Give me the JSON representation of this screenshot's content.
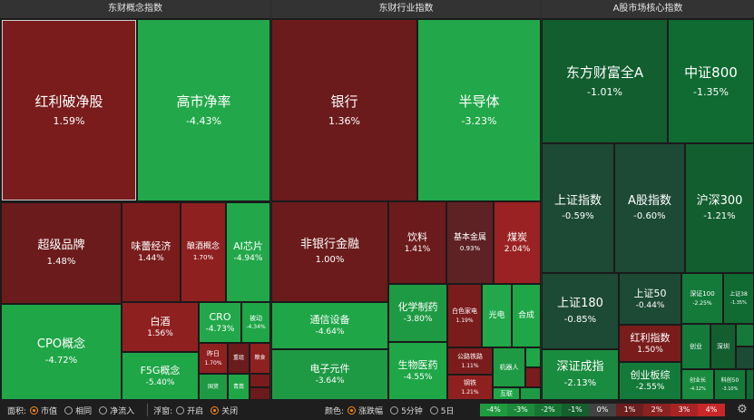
{
  "panels": {
    "concept": "东财概念指数",
    "industry": "东财行业指数",
    "market": "A股市场核心指数"
  },
  "concept": {
    "hongli": {
      "name": "红利破净股",
      "pct": "1.59%"
    },
    "gaoshi": {
      "name": "高市净率",
      "pct": "-4.43%"
    },
    "chaoji": {
      "name": "超级品牌",
      "pct": "1.48%"
    },
    "weilei": {
      "name": "味蕾经济",
      "pct": "1.44%"
    },
    "niangjiu": {
      "name": "酿酒概念",
      "pct": "1.70%"
    },
    "aichip": {
      "name": "AI芯片",
      "pct": "-4.94%"
    },
    "cpo": {
      "name": "CPO概念",
      "pct": "-4.72%"
    },
    "baijiu": {
      "name": "白酒",
      "pct": "1.56%"
    },
    "cro": {
      "name": "CRO",
      "pct": "-4.73%"
    },
    "beidong": {
      "name": "被动",
      "pct": "-4.34%"
    },
    "f5g": {
      "name": "F5G概念",
      "pct": "-5.40%"
    },
    "zuojiu": {
      "name": "昨日",
      "pct": "1.70%"
    },
    "chongzu": {
      "name": "重组"
    },
    "liangshi": {
      "name": "粮食"
    },
    "guozi": {
      "name": "国资"
    },
    "qingshao": {
      "name": "青蒿"
    }
  },
  "industry": {
    "yinhang": {
      "name": "银行",
      "pct": "1.36%"
    },
    "bandaoti": {
      "name": "半导体",
      "pct": "-3.23%"
    },
    "feiyinhang": {
      "name": "非银行金融",
      "pct": "1.00%"
    },
    "yinliao": {
      "name": "饮料",
      "pct": "1.41%"
    },
    "jibenjinshu": {
      "name": "基本金属",
      "pct": "0.93%"
    },
    "meitan": {
      "name": "煤炭",
      "pct": "2.04%"
    },
    "tongxin": {
      "name": "通信设备",
      "pct": "-4.64%"
    },
    "huaxue": {
      "name": "化学制药",
      "pct": "-3.80%"
    },
    "baisejiadian": {
      "name": "白色家电",
      "pct": "1.19%"
    },
    "guangdian": {
      "name": "光电"
    },
    "hecheng": {
      "name": "合成"
    },
    "dianzi": {
      "name": "电子元件",
      "pct": "-3.64%"
    },
    "shengwu": {
      "name": "生物医药",
      "pct": "-4.55%"
    },
    "gonglu": {
      "name": "公路铁路",
      "pct": "1.11%"
    },
    "gangtie": {
      "name": "钢铁",
      "pct": "1.21%"
    },
    "jiqiren": {
      "name": "机器人"
    },
    "hulian": {
      "name": "互联"
    }
  },
  "market": {
    "dfcf": {
      "name": "东方财富全A",
      "pct": "-1.01%"
    },
    "zz800": {
      "name": "中证800",
      "pct": "-1.35%"
    },
    "shzs": {
      "name": "上证指数",
      "pct": "-0.59%"
    },
    "agbk": {
      "name": "A股指数",
      "pct": "-0.60%"
    },
    "hs300": {
      "name": "沪深300",
      "pct": "-1.21%"
    },
    "sz180": {
      "name": "上证180",
      "pct": "-0.85%"
    },
    "sz50": {
      "name": "上证50",
      "pct": "-0.44%"
    },
    "sz100": {
      "name": "深证100",
      "pct": "-2.25%"
    },
    "sz380": {
      "name": "上证38",
      "pct": "-1.35%"
    },
    "hongli": {
      "name": "红利指数",
      "pct": "1.50%"
    },
    "szcz": {
      "name": "深证成指",
      "pct": "-2.13%"
    },
    "cybz": {
      "name": "创业板综",
      "pct": "-2.55%"
    },
    "chuangye": {
      "name": "创业"
    },
    "shenzheng": {
      "name": "深圳"
    },
    "cyc": {
      "name": "创业长",
      "pct": "-4.12%"
    },
    "kc50": {
      "name": "科创50",
      "pct": "-3.10%"
    }
  },
  "bottom_bar": {
    "area_label": "面积:",
    "area_options": [
      "市值",
      "相同",
      "净流入"
    ],
    "area_selected": "市值",
    "float_label": "浮窗:",
    "float_options": [
      "开启",
      "关闭"
    ],
    "float_selected": "关闭",
    "color_label": "颜色:",
    "color_options": [
      "涨跌幅",
      "5分钟",
      "5日"
    ],
    "color_selected": "涨跌幅",
    "legend": [
      {
        "label": "-4%",
        "color": "#1f9b3f"
      },
      {
        "label": "-3%",
        "color": "#1c8a3a"
      },
      {
        "label": "-2%",
        "color": "#177534"
      },
      {
        "label": "-1%",
        "color": "#145f2d"
      },
      {
        "label": "0%",
        "color": "#424242"
      },
      {
        "label": "1%",
        "color": "#6b1f1f"
      },
      {
        "label": "2%",
        "color": "#8a2222"
      },
      {
        "label": "3%",
        "color": "#a82424"
      },
      {
        "label": "4%",
        "color": "#c82727"
      }
    ],
    "settings_icon": "gear-icon"
  }
}
